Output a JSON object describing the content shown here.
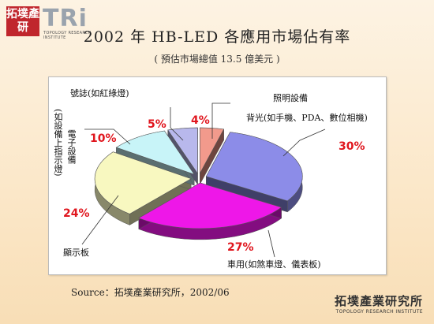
{
  "logo": {
    "chinese": "拓墣產研",
    "brand": "TRi",
    "tagline": "TOPOLOGY RESEARCH INSTITUTE"
  },
  "chart_data": {
    "type": "pie",
    "title": "2002 年 HB-LED 各應用市場佔有率",
    "subtitle": "( 預估市場總值 13.5 億美元 )",
    "slices": [
      {
        "label": "背光(如手機、PDA、數位相機)",
        "value": 30,
        "display": "30%",
        "color": "#8c8ce8"
      },
      {
        "label": "車用(如煞車燈、儀表板)",
        "value": 27,
        "display": "27%",
        "color": "#ee17e8"
      },
      {
        "label": "顯示板",
        "value": 24,
        "display": "24%",
        "color": "#f8f8c0"
      },
      {
        "label": "電子設備(如設備上指示燈)",
        "value": 10,
        "display": "10%",
        "color": "#c8f4f8"
      },
      {
        "label": "號誌(如紅綠燈)",
        "value": 5,
        "display": "5%",
        "color": "#b8b8ec"
      },
      {
        "label": "照明設備",
        "value": 4,
        "display": "4%",
        "color": "#f29a8c"
      }
    ]
  },
  "labels": {
    "backlight": "背光(如手機、PDA、數位相機)",
    "automotive": "車用(如煞車燈、儀表板)",
    "display": "顯示板",
    "signal": "號誌(如紅綠燈)",
    "lighting": "照明設備",
    "electronics_main": "電子設備",
    "electronics_paren": "(如設備上指示燈)"
  },
  "source": "Source：拓墣產業研究所，2002/06",
  "footer_logo": {
    "chinese": "拓墣產業研究所",
    "english": "TOPOLOGY RESEARCH INSTITUTE"
  }
}
